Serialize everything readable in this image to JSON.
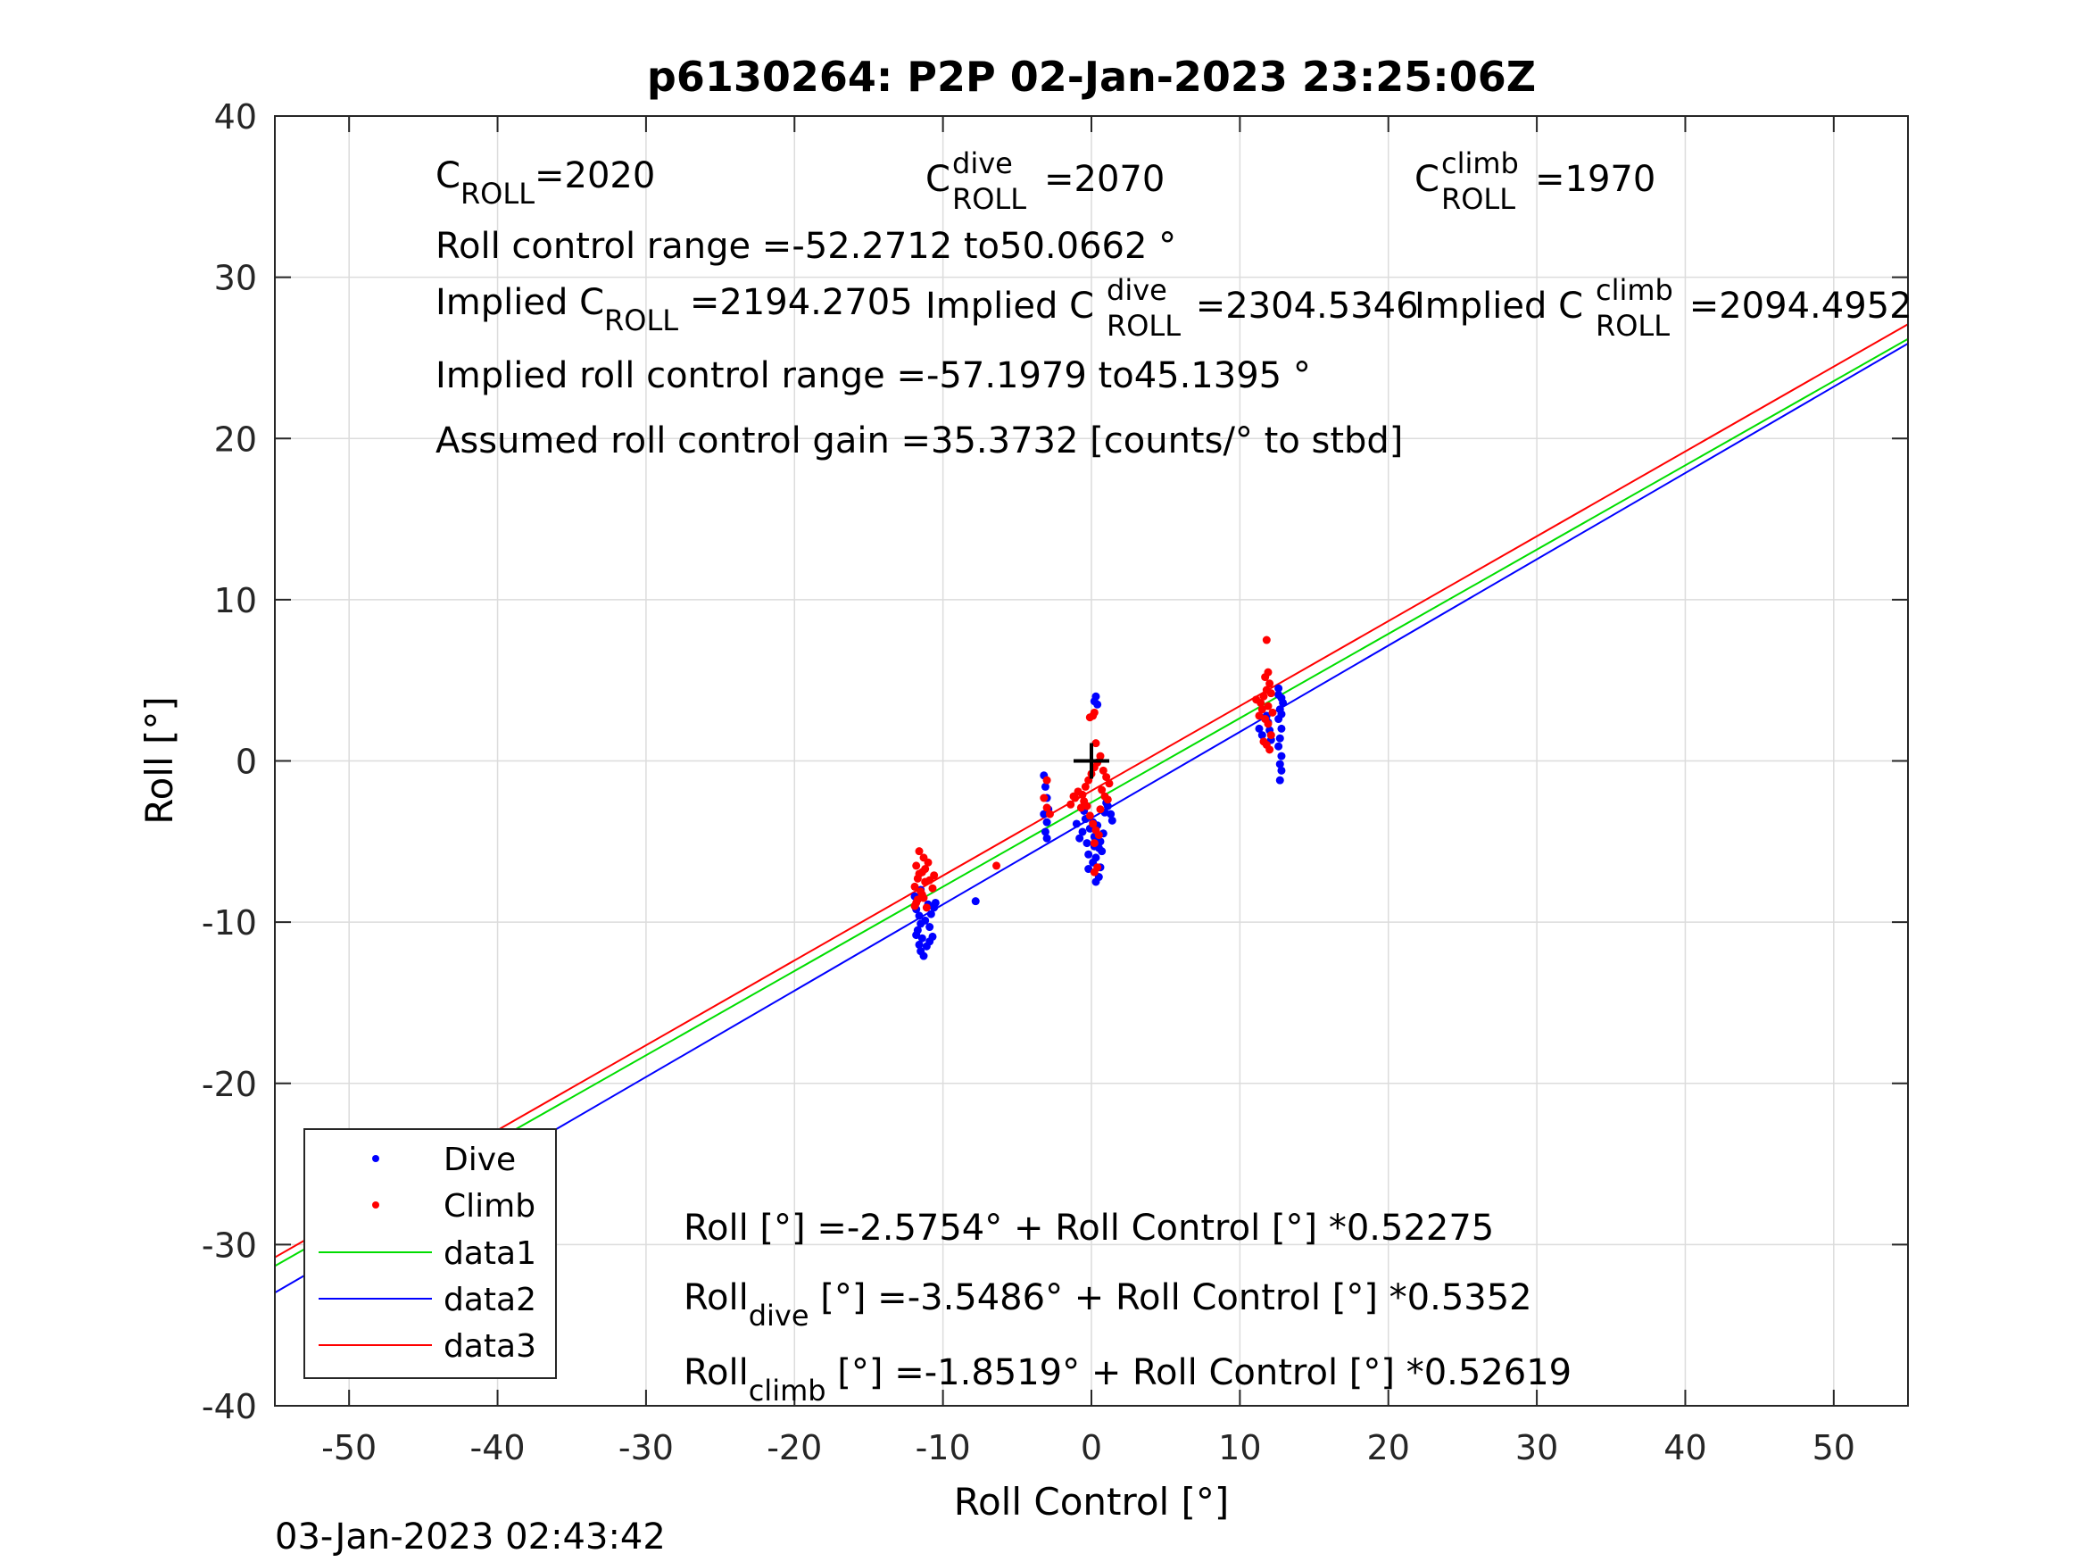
{
  "figure": {
    "title": "p6130264: P2P 02-Jan-2023 23:25:06Z",
    "timestamp": "03-Jan-2023 02:43:42"
  },
  "colors": {
    "dive": "#0000ff",
    "climb": "#ff0000",
    "data1": "#00dd00",
    "data2": "#0000ff",
    "data3": "#ff0000",
    "grid": "#dcdcdc",
    "axes": "#262626"
  },
  "annotations": {
    "c_roll": {
      "base": "C",
      "sub": "ROLL",
      "value": "=2020"
    },
    "c_roll_dive": {
      "base": "C",
      "sup": "dive",
      "sub": "ROLL",
      "value": "=2070"
    },
    "c_roll_climb": {
      "base": "C",
      "sup": "climb",
      "sub": "ROLL",
      "value": "=1970"
    },
    "roll_control_range": "Roll control range =-52.2712 to50.0662 °",
    "implied_c_roll": {
      "prefix": "Implied C",
      "sub": "ROLL",
      "value": " =2194.2705"
    },
    "implied_c_roll_dive": {
      "prefix": "Implied C",
      "sup": "dive",
      "sub": "ROLL",
      "value": " =2304.5346"
    },
    "implied_c_roll_climb": {
      "prefix": "Implied C",
      "sup": "climb",
      "sub": "ROLL",
      "value": " =2094.4952"
    },
    "implied_range": "Implied roll control range =-57.1979 to45.1395 °",
    "assumed_gain": "Assumed roll control gain =35.3732 [counts/° to stbd]",
    "fit_all": "Roll [°] =-2.5754° + Roll Control [°] *0.52275",
    "fit_dive": {
      "base": "Roll",
      "sub": "dive",
      "rest": " [°] =-3.5486° + Roll Control [°] *0.5352"
    },
    "fit_climb": {
      "base": "Roll",
      "sub": "climb",
      "rest": " [°] =-1.8519° + Roll Control [°] *0.52619"
    }
  },
  "chart_data": {
    "type": "scatter",
    "title": "p6130264: P2P 02-Jan-2023 23:25:06Z",
    "xlabel": "Roll Control [°]",
    "ylabel": "Roll [°]",
    "xlim": [
      -55,
      55
    ],
    "ylim": [
      -40,
      40
    ],
    "xticks": [
      -50,
      -40,
      -30,
      -20,
      -10,
      0,
      10,
      20,
      30,
      40,
      50
    ],
    "yticks": [
      -40,
      -30,
      -20,
      -10,
      0,
      10,
      20,
      30,
      40
    ],
    "grid": true,
    "legend_position": "bottom-left",
    "legend": [
      "Dive",
      "Climb",
      "data1",
      "data2",
      "data3"
    ],
    "marker": {
      "x": 0,
      "y": 0,
      "label": "+"
    },
    "series": [
      {
        "name": "Dive",
        "kind": "points",
        "points": [
          [
            -11.8,
            -9.2
          ],
          [
            -11.6,
            -9.6
          ],
          [
            -11.5,
            -10.1
          ],
          [
            -11.7,
            -10.5
          ],
          [
            -11.4,
            -11.0
          ],
          [
            -11.6,
            -11.4
          ],
          [
            -11.5,
            -11.8
          ],
          [
            -11.3,
            -12.1
          ],
          [
            -11.8,
            -10.8
          ],
          [
            -11.2,
            -9.9
          ],
          [
            -10.9,
            -10.3
          ],
          [
            -10.7,
            -10.9
          ],
          [
            -10.8,
            -9.5
          ],
          [
            -11.0,
            -8.9
          ],
          [
            -10.6,
            -9.1
          ],
          [
            -11.9,
            -8.4
          ],
          [
            -11.5,
            -8.0
          ],
          [
            -10.5,
            -8.8
          ],
          [
            -11.1,
            -11.5
          ],
          [
            -10.9,
            -11.2
          ],
          [
            -7.8,
            -8.7
          ],
          [
            -3.2,
            -0.9
          ],
          [
            -3.1,
            -1.6
          ],
          [
            -3.0,
            -2.3
          ],
          [
            -3.2,
            -3.3
          ],
          [
            -3.0,
            -3.8
          ],
          [
            -3.1,
            -4.4
          ],
          [
            -3.0,
            -4.8
          ],
          [
            -2.9,
            -3.0
          ],
          [
            0.3,
            4.0
          ],
          [
            0.2,
            3.7
          ],
          [
            0.4,
            3.5
          ],
          [
            -0.6,
            -4.4
          ],
          [
            -0.3,
            -5.1
          ],
          [
            -0.2,
            -5.8
          ],
          [
            0.1,
            -6.3
          ],
          [
            0.3,
            -6.0
          ],
          [
            0.5,
            -5.4
          ],
          [
            0.6,
            -5.0
          ],
          [
            0.2,
            -4.7
          ],
          [
            -0.1,
            -4.2
          ],
          [
            0.4,
            -4.0
          ],
          [
            0.8,
            -4.5
          ],
          [
            0.6,
            -6.6
          ],
          [
            0.5,
            -7.2
          ],
          [
            0.3,
            -7.5
          ],
          [
            0.1,
            -3.8
          ],
          [
            -0.4,
            -3.6
          ],
          [
            0.9,
            -3.2
          ],
          [
            1.1,
            -2.8
          ],
          [
            1.3,
            -3.3
          ],
          [
            1.4,
            -3.7
          ],
          [
            1.0,
            -2.6
          ],
          [
            -1.0,
            -3.9
          ],
          [
            -0.8,
            -4.8
          ],
          [
            0.7,
            -5.6
          ],
          [
            -0.2,
            -6.7
          ],
          [
            0.2,
            -5.3
          ],
          [
            -0.5,
            -3.1
          ],
          [
            11.3,
            2.0
          ],
          [
            11.5,
            1.6
          ],
          [
            11.9,
            2.4
          ],
          [
            12.1,
            1.3
          ],
          [
            12.6,
            4.5
          ],
          [
            12.8,
            3.9
          ],
          [
            12.7,
            3.2
          ],
          [
            12.6,
            2.6
          ],
          [
            12.8,
            2.0
          ],
          [
            12.7,
            1.4
          ],
          [
            12.6,
            0.9
          ],
          [
            12.8,
            0.3
          ],
          [
            12.7,
            -0.2
          ],
          [
            12.8,
            -0.6
          ],
          [
            12.7,
            -1.2
          ],
          [
            12.9,
            3.6
          ],
          [
            12.6,
            4.1
          ],
          [
            12.8,
            2.9
          ],
          [
            11.8,
            2.8
          ],
          [
            12.0,
            1.9
          ]
        ]
      },
      {
        "name": "Climb",
        "kind": "points",
        "points": [
          [
            -11.6,
            -5.6
          ],
          [
            -11.3,
            -6.0
          ],
          [
            -11.8,
            -6.5
          ],
          [
            -11.4,
            -6.9
          ],
          [
            -11.7,
            -7.3
          ],
          [
            -11.2,
            -7.5
          ],
          [
            -11.9,
            -7.8
          ],
          [
            -11.5,
            -8.1
          ],
          [
            -11.3,
            -8.5
          ],
          [
            -11.8,
            -8.8
          ],
          [
            -11.1,
            -9.1
          ],
          [
            -11.6,
            -7.0
          ],
          [
            -10.9,
            -7.4
          ],
          [
            -10.7,
            -7.9
          ],
          [
            -11.0,
            -6.3
          ],
          [
            -11.4,
            -8.3
          ],
          [
            -11.9,
            -9.0
          ],
          [
            -10.6,
            -7.1
          ],
          [
            -11.2,
            -6.7
          ],
          [
            -11.7,
            -8.6
          ],
          [
            -6.4,
            -6.5
          ],
          [
            -3.0,
            -1.2
          ],
          [
            -3.2,
            -2.3
          ],
          [
            -3.0,
            -2.9
          ],
          [
            -2.8,
            -3.3
          ],
          [
            -1.4,
            -2.7
          ],
          [
            -1.1,
            -2.3
          ],
          [
            -0.9,
            -1.9
          ],
          [
            -0.6,
            -2.1
          ],
          [
            -0.4,
            -1.6
          ],
          [
            -0.2,
            -1.2
          ],
          [
            0.0,
            -0.8
          ],
          [
            0.2,
            -0.4
          ],
          [
            0.4,
            -0.1
          ],
          [
            0.6,
            0.3
          ],
          [
            0.8,
            -0.6
          ],
          [
            1.0,
            -1.0
          ],
          [
            1.2,
            -1.4
          ],
          [
            0.3,
            1.1
          ],
          [
            0.1,
            2.8
          ],
          [
            -0.1,
            2.7
          ],
          [
            0.2,
            3.0
          ],
          [
            -0.3,
            -2.8
          ],
          [
            -0.1,
            -3.4
          ],
          [
            0.1,
            -3.9
          ],
          [
            0.3,
            -4.3
          ],
          [
            0.5,
            -4.6
          ],
          [
            0.2,
            -5.1
          ],
          [
            0.4,
            -6.6
          ],
          [
            0.2,
            -6.9
          ],
          [
            -0.5,
            -2.5
          ],
          [
            0.7,
            -1.8
          ],
          [
            0.9,
            -2.2
          ],
          [
            -0.7,
            -2.9
          ],
          [
            -1.2,
            -2.2
          ],
          [
            0.6,
            -3.0
          ],
          [
            1.1,
            -2.4
          ],
          [
            11.4,
            3.6
          ],
          [
            11.6,
            4.0
          ],
          [
            11.8,
            4.4
          ],
          [
            12.0,
            4.8
          ],
          [
            11.7,
            5.2
          ],
          [
            11.9,
            5.5
          ],
          [
            11.8,
            7.5
          ],
          [
            11.5,
            3.2
          ],
          [
            11.3,
            2.8
          ],
          [
            11.9,
            2.3
          ],
          [
            12.1,
            1.6
          ],
          [
            11.8,
            1.0
          ],
          [
            12.0,
            0.7
          ],
          [
            11.6,
            1.2
          ],
          [
            12.2,
            3.0
          ],
          [
            11.7,
            2.6
          ],
          [
            11.1,
            3.8
          ],
          [
            12.1,
            4.2
          ],
          [
            11.9,
            3.4
          ]
        ]
      },
      {
        "name": "data1",
        "kind": "line",
        "x": [
          -55,
          55
        ],
        "y": [
          -31.3268,
          26.1761
        ]
      },
      {
        "name": "data2",
        "kind": "line",
        "x": [
          -55,
          55
        ],
        "y": [
          -32.9846,
          25.8874
        ]
      },
      {
        "name": "data3",
        "kind": "line",
        "x": [
          -55,
          55
        ],
        "y": [
          -30.7924,
          27.0885
        ]
      }
    ]
  }
}
